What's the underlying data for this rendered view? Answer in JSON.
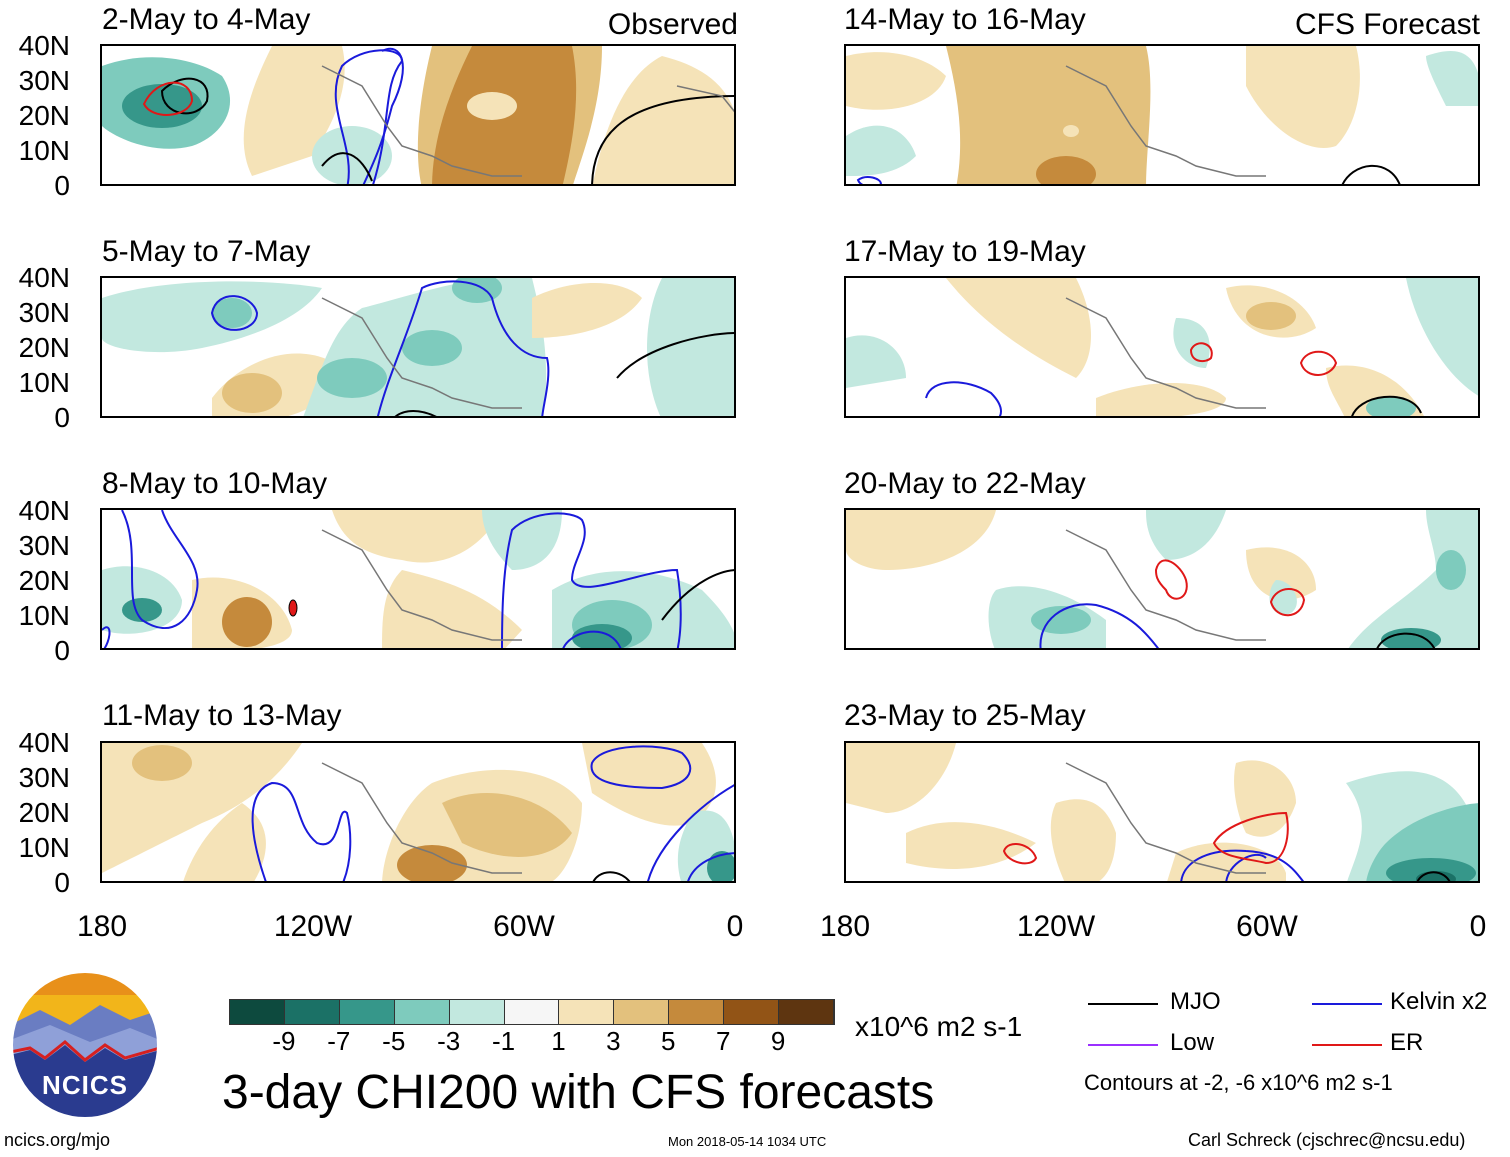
{
  "observed_label": "Observed",
  "forecast_label": "CFS Forecast",
  "panels_left": [
    {
      "title": "2-May to 4-May"
    },
    {
      "title": "5-May to 7-May"
    },
    {
      "title": "8-May to 10-May"
    },
    {
      "title": "11-May to 13-May"
    }
  ],
  "panels_right": [
    {
      "title": "14-May to 16-May"
    },
    {
      "title": "17-May to 19-May"
    },
    {
      "title": "20-May to 22-May"
    },
    {
      "title": "23-May to 25-May"
    }
  ],
  "lat_labels": [
    "40N",
    "30N",
    "20N",
    "10N",
    "0"
  ],
  "lon_labels": [
    "180",
    "120W",
    "60W",
    "0"
  ],
  "colorbar": {
    "colors": [
      "#0d4a3e",
      "#1b7166",
      "#36978a",
      "#7ecbbd",
      "#c2e8df",
      "#f6f6f6",
      "#f5e3b8",
      "#e3c17d",
      "#c58a3c",
      "#925416",
      "#5e3510"
    ],
    "ticks": [
      "-9",
      "-7",
      "-5",
      "-3",
      "-1",
      "1",
      "3",
      "5",
      "7",
      "9"
    ],
    "units": "x10^6 m2 s-1"
  },
  "main_title": "3-day CHI200 with CFS forecasts",
  "legend": {
    "mjo": {
      "label": "MJO",
      "color": "#000000"
    },
    "kelvin": {
      "label": "Kelvin x2",
      "color": "#1a1adb"
    },
    "low": {
      "label": "Low",
      "color": "#9b30ff"
    },
    "er": {
      "label": "ER",
      "color": "#e01818"
    },
    "contours_note": "Contours at -2, -6 x10^6 m2 s-1"
  },
  "logo_text": "NCICS",
  "footer": {
    "site": "ncics.org/mjo",
    "timestamp": "Mon 2018-05-14 1034 UTC",
    "author": "Carl Schreck (cjschrec@ncsu.edu)"
  }
}
